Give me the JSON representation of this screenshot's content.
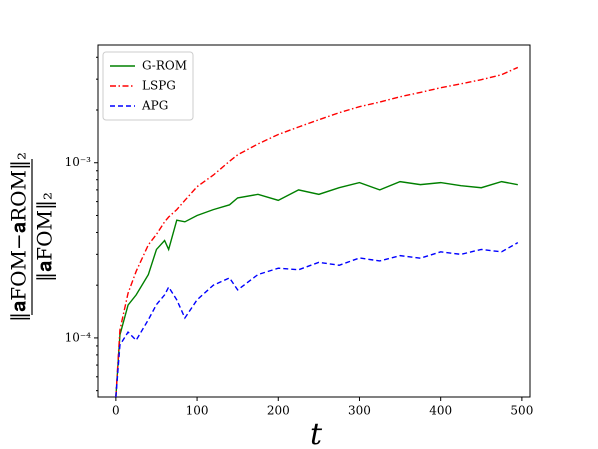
{
  "chart_data": {
    "type": "line",
    "xlabel": "t",
    "ylabel_numerator": "‖𝐚FOM−𝐚ROM‖₂",
    "ylabel_denominator": "‖𝐚FOM‖₂",
    "x": [
      0,
      5,
      15,
      25,
      40,
      50,
      60,
      65,
      75,
      85,
      100,
      120,
      140,
      150,
      175,
      200,
      225,
      250,
      275,
      300,
      325,
      350,
      375,
      400,
      425,
      450,
      475,
      495
    ],
    "series": [
      {
        "name": "G-ROM",
        "color": "#008000",
        "linestyle": "solid",
        "values": [
          4.6e-05,
          0.000104,
          0.000154,
          0.000176,
          0.00023,
          0.00032,
          0.00036,
          0.00032,
          0.00047,
          0.00046,
          0.0005,
          0.00054,
          0.000575,
          0.00063,
          0.00066,
          0.00061,
          0.0007,
          0.00066,
          0.00072,
          0.00077,
          0.0007,
          0.00078,
          0.00075,
          0.00077,
          0.00074,
          0.00072,
          0.00078,
          0.00075
        ]
      },
      {
        "name": "LSPG",
        "color": "#ff0000",
        "linestyle": "dashdot",
        "values": [
          4.6e-05,
          0.000111,
          0.00018,
          0.00024,
          0.00034,
          0.00039,
          0.00046,
          0.00049,
          0.00054,
          0.00061,
          0.00073,
          0.00085,
          0.00102,
          0.00111,
          0.00128,
          0.00145,
          0.0016,
          0.00176,
          0.00193,
          0.00209,
          0.00222,
          0.00238,
          0.00252,
          0.00268,
          0.00282,
          0.00298,
          0.00318,
          0.0035
        ]
      },
      {
        "name": "APG",
        "color": "#0000ff",
        "linestyle": "dashed",
        "values": [
          4.6e-05,
          9.1e-05,
          0.000108,
          9.7e-05,
          0.000127,
          0.000155,
          0.000176,
          0.000195,
          0.000165,
          0.00013,
          0.000165,
          0.0002,
          0.00022,
          0.000188,
          0.00023,
          0.00025,
          0.000245,
          0.00027,
          0.00026,
          0.000286,
          0.000275,
          0.000295,
          0.000285,
          0.00031,
          0.0003,
          0.00032,
          0.00031,
          0.00035
        ]
      }
    ],
    "xlim": [
      -22,
      510
    ],
    "xticks": [
      0,
      100,
      200,
      300,
      400,
      500
    ],
    "ylim": [
      4.6e-05,
      0.0047
    ],
    "ylog": true,
    "yticks": [
      {
        "value": 0.0001,
        "label": "10⁻⁴"
      },
      {
        "value": 0.001,
        "label": "10⁻³"
      }
    ],
    "yminorticks": [
      5e-05,
      6e-05,
      7e-05,
      8e-05,
      9e-05,
      0.0002,
      0.0003,
      0.0004,
      0.0005,
      0.0006,
      0.0007,
      0.0008,
      0.0009,
      0.002,
      0.003,
      0.004
    ],
    "legend": "upper left"
  }
}
